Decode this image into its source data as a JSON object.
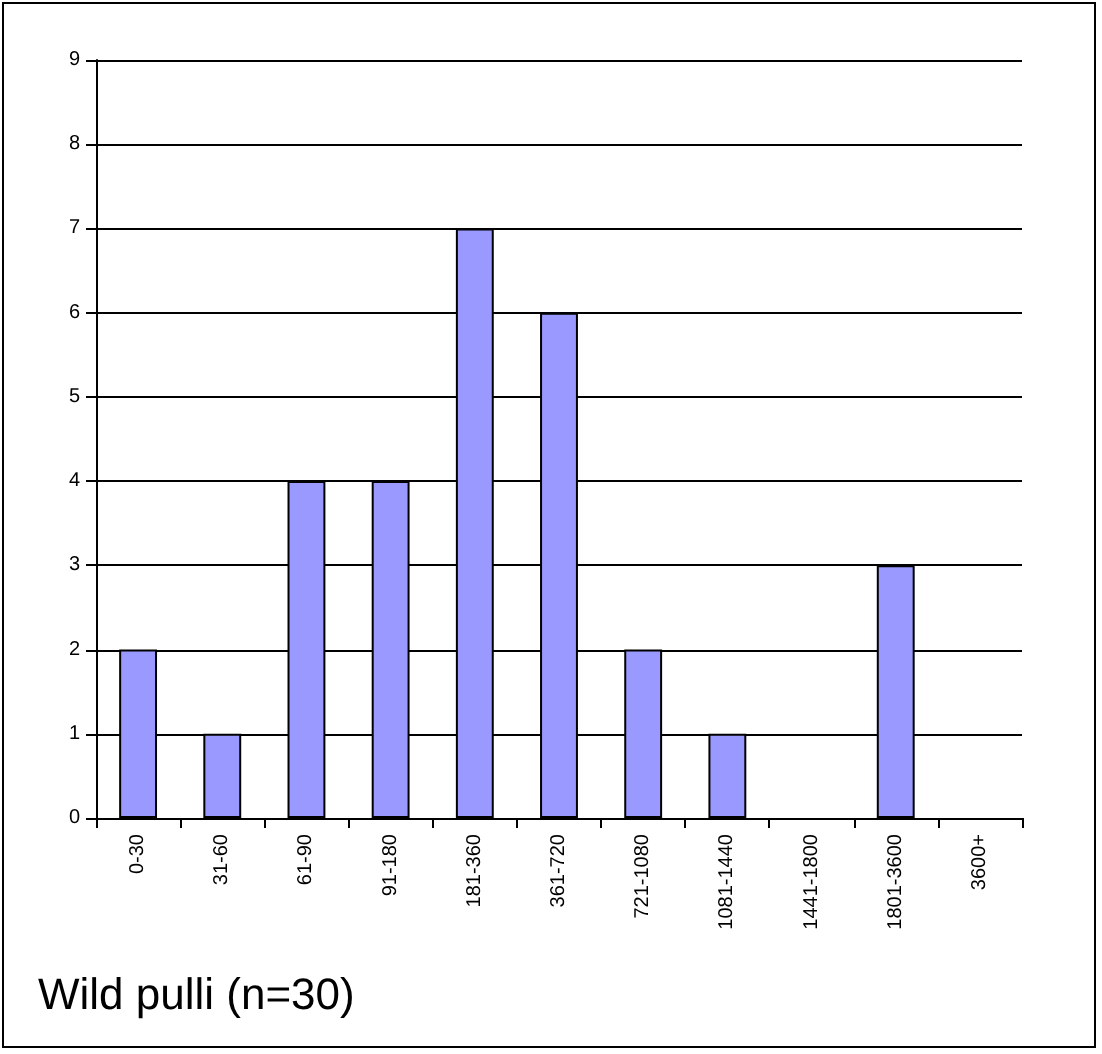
{
  "chart_data": {
    "type": "bar",
    "title": "Wild pulli (n=30)",
    "categories": [
      "0-30",
      "31-60",
      "61-90",
      "91-180",
      "181-360",
      "361-720",
      "721-1080",
      "1081-1440",
      "1441-1800",
      "1801-3600",
      "3600+"
    ],
    "values": [
      2,
      1,
      4,
      4,
      7,
      6,
      2,
      1,
      0,
      3,
      0
    ],
    "color": "#9999ff",
    "ylim": [
      0,
      9
    ],
    "yticks": [
      0,
      1,
      2,
      3,
      4,
      5,
      6,
      7,
      8,
      9
    ],
    "grid": "y"
  }
}
